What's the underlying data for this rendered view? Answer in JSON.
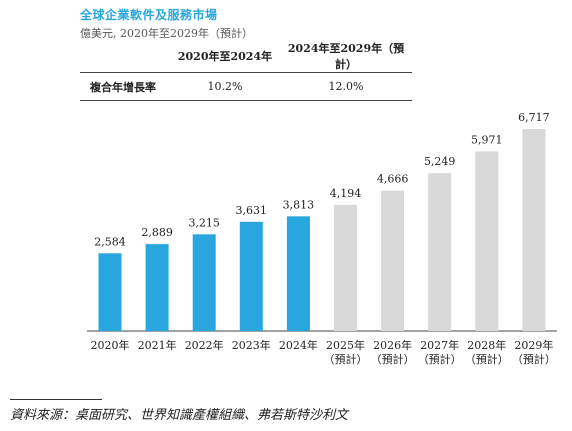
{
  "header": {
    "title": "全球企業軟件及服務市場",
    "subtitle": "億美元, 2020年至2029年（預計）"
  },
  "cagr_table": {
    "columns": [
      "",
      "2020年至2024年",
      "2024年至2029年（預計）"
    ],
    "rows": [
      {
        "label": "複合年增長率",
        "values": [
          "10.2%",
          "12.0%"
        ]
      }
    ]
  },
  "colors": {
    "actual": "#2aa6de",
    "forecast": "#d9d9d9",
    "title": "#2aa6de"
  },
  "chart_data": {
    "type": "bar",
    "title": "全球企業軟件及服務市場",
    "unit": "億美元",
    "categories": [
      "2020年",
      "2021年",
      "2022年",
      "2023年",
      "2024年",
      "2025年",
      "2026年",
      "2027年",
      "2028年",
      "2029年"
    ],
    "category_notes": [
      "",
      "",
      "",
      "",
      "",
      "（預計）",
      "（預計）",
      "（預計）",
      "（預計）",
      "（預計）"
    ],
    "values": [
      2584,
      2889,
      3215,
      3631,
      3813,
      4194,
      4666,
      5249,
      5971,
      6717
    ],
    "value_labels": [
      "2,584",
      "2,889",
      "3,215",
      "3,631",
      "3,813",
      "4,194",
      "4,666",
      "5,249",
      "5,971",
      "6,717"
    ],
    "forecast": [
      false,
      false,
      false,
      false,
      false,
      true,
      true,
      true,
      true,
      true
    ],
    "ylim": [
      0,
      6717
    ],
    "grid": false,
    "legend": "none"
  },
  "footer": {
    "source": "資料來源：桌面研究、世界知識產權組織、弗若斯特沙利文"
  }
}
